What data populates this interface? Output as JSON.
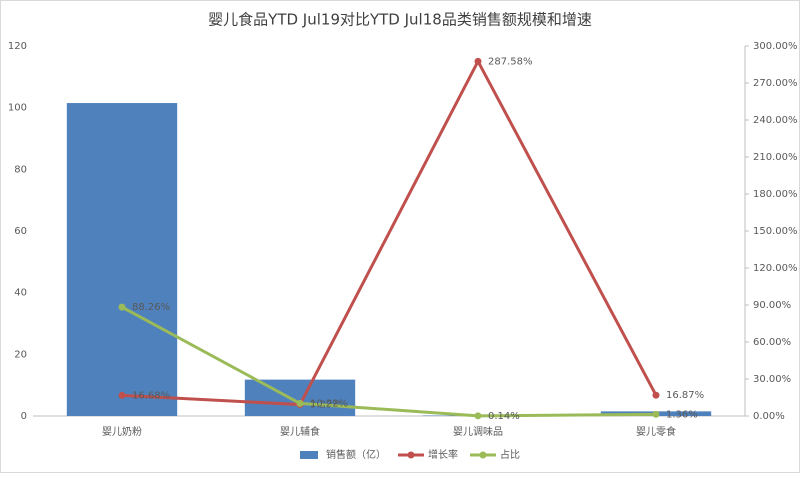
{
  "chart_data": {
    "type": "bar",
    "title": "婴儿食品YTD Jul19对比YTD Jul18品类销售额规模和增速",
    "categories": [
      "婴儿奶粉",
      "婴儿辅食",
      "婴儿调味品",
      "婴儿零食"
    ],
    "series": [
      {
        "name": "销售额（亿）",
        "type": "bar",
        "color": "#4f81bd",
        "values": [
          101.5,
          11.8,
          0.16,
          1.5
        ]
      },
      {
        "name": "增长率",
        "type": "line",
        "axis": "y2",
        "color": "#c0504d",
        "values": [
          16.68,
          9.29,
          287.58,
          16.87
        ],
        "value_labels": [
          "16.68%",
          "9.29%",
          "287.58%",
          "16.87%"
        ]
      },
      {
        "name": "占比",
        "type": "line",
        "axis": "y2",
        "color": "#9bbb59",
        "values": [
          88.26,
          10.22,
          0.14,
          1.36
        ],
        "value_labels": [
          "88.26%",
          "10.22%",
          "0.14%",
          "1.36%"
        ]
      }
    ],
    "ylim": [
      0,
      120
    ],
    "yticks": [
      0,
      20,
      40,
      60,
      80,
      100,
      120
    ],
    "y2lim": [
      0,
      300
    ],
    "y2ticks": [
      {
        "value": 0,
        "label": "0.00%"
      },
      {
        "value": 30,
        "label": "30.00%"
      },
      {
        "value": 60,
        "label": "60.00%"
      },
      {
        "value": 90,
        "label": "90.00%"
      },
      {
        "value": 120,
        "label": "120.00%"
      },
      {
        "value": 150,
        "label": "150.00%"
      },
      {
        "value": 180,
        "label": "180.00%"
      },
      {
        "value": 210,
        "label": "210.00%"
      },
      {
        "value": 240,
        "label": "240.00%"
      },
      {
        "value": 270,
        "label": "270.00%"
      },
      {
        "value": 300,
        "label": "300.00%"
      }
    ],
    "grid": false,
    "legend": "bottom"
  }
}
